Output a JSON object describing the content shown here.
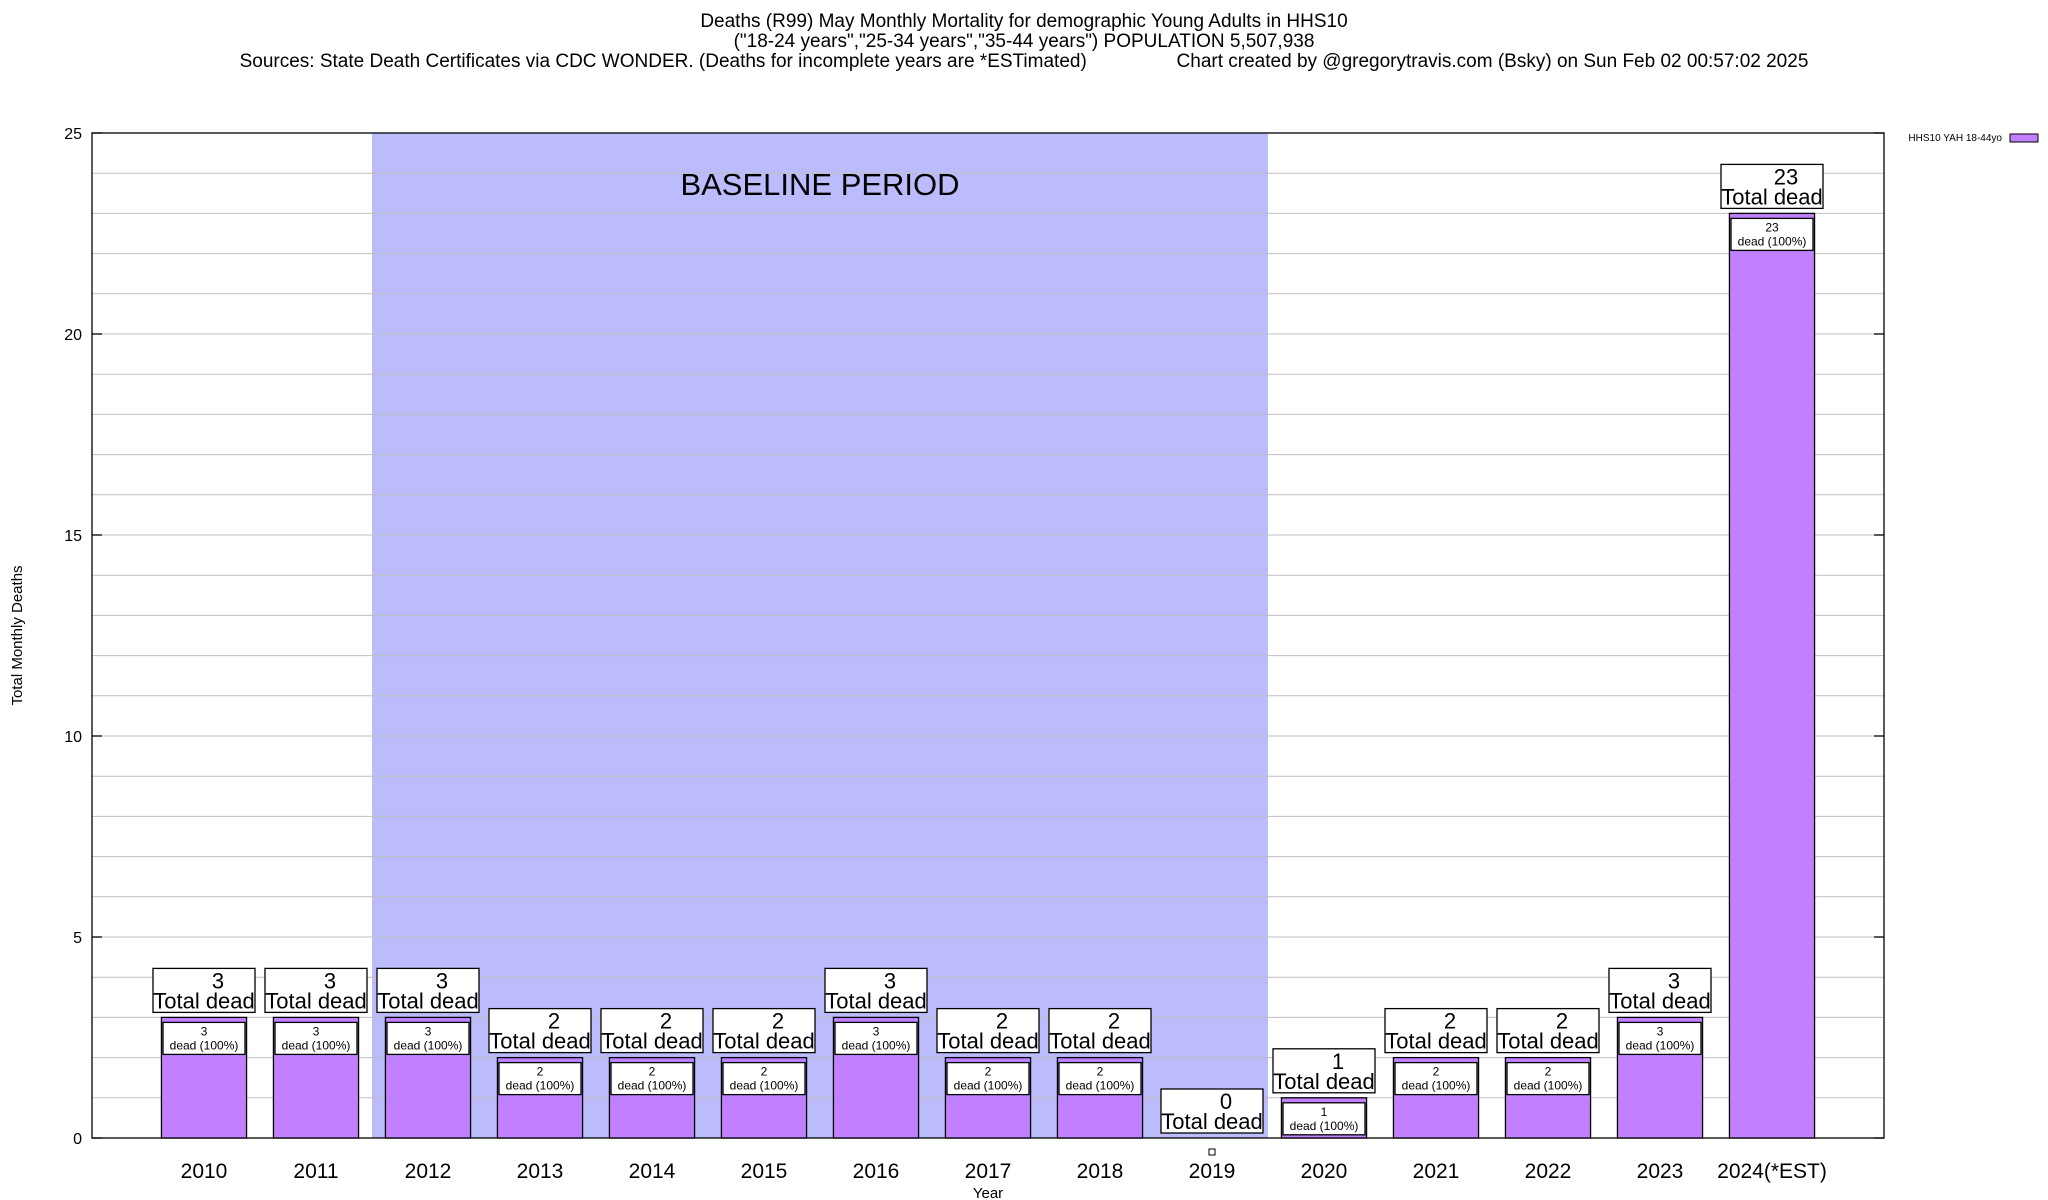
{
  "titles": {
    "line1": "Deaths (R99) May Monthly Mortality for demographic Young Adults in HHS10",
    "line2": "(\"18-24 years\",\"25-34 years\",\"35-44 years\") POPULATION 5,507,938",
    "line3_left": "Sources: State Death Certificates via CDC WONDER. (Deaths for incomplete years are *ESTimated)",
    "line3_right": "Chart created by @gregorytravis.com (Bsky) on Sun Feb 02 00:57:02 2025"
  },
  "colors": {
    "bar": "#c080ff",
    "baseline_band": "#bcbcfc",
    "grid": "#bfbfbf"
  },
  "chart_data": {
    "type": "bar",
    "ylabel": "Total Monthly Deaths",
    "xlabel": "Year",
    "ylim": [
      0,
      25
    ],
    "yticks": [
      0,
      5,
      10,
      15,
      20,
      25
    ],
    "grid": true,
    "legend_position": "top-right",
    "categories": [
      "2010",
      "2011",
      "2012",
      "2013",
      "2014",
      "2015",
      "2016",
      "2017",
      "2018",
      "2019",
      "2020",
      "2021",
      "2022",
      "2023",
      "2024(*EST)"
    ],
    "series": [
      {
        "name": "HHS10 YAH 18-44yo",
        "values": [
          3,
          3,
          3,
          2,
          2,
          2,
          3,
          2,
          2,
          0,
          1,
          2,
          2,
          3,
          23
        ]
      }
    ],
    "total_label_suffix": "Total dead",
    "inner_label_suffix": "dead (100%)",
    "baseline_annotation": {
      "text": "BASELINE PERIOD",
      "from": "2012",
      "to": "2019"
    }
  }
}
